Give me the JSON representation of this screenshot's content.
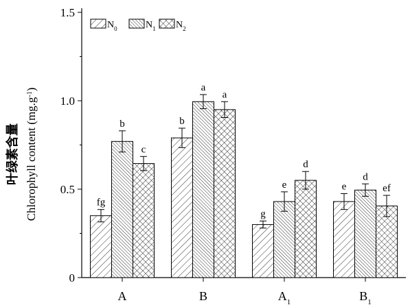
{
  "chart_data": {
    "type": "bar",
    "ylabel_cn": "叶绿素含量",
    "ylabel": "Chlorophyll content (mg.g",
    "ylabel_sup": "-1",
    "ylabel_tail": ")",
    "ylim": [
      0,
      1.5
    ],
    "yticks": [
      "0",
      "0.5",
      "1.0",
      "1.5"
    ],
    "ytick_values": [
      0,
      0.5,
      1.0,
      1.5
    ],
    "categories": [
      {
        "main": "A",
        "sub": ""
      },
      {
        "main": "B",
        "sub": ""
      },
      {
        "main": "A",
        "sub": "1"
      },
      {
        "main": "B",
        "sub": "1"
      }
    ],
    "legend_position": "top-left",
    "grid": false,
    "series": [
      {
        "name": "N",
        "sub": "0",
        "pattern": "diag-hatch",
        "values": [
          0.35,
          0.79,
          0.3,
          0.43
        ],
        "errors": [
          0.035,
          0.055,
          0.02,
          0.045
        ],
        "labels": [
          "fg",
          "b",
          "g",
          "e"
        ]
      },
      {
        "name": "N",
        "sub": "1",
        "pattern": "dense-diag-hatch",
        "values": [
          0.77,
          0.995,
          0.43,
          0.495
        ],
        "errors": [
          0.06,
          0.04,
          0.055,
          0.035
        ],
        "labels": [
          "b",
          "a",
          "e",
          "d"
        ]
      },
      {
        "name": "N",
        "sub": "2",
        "pattern": "cross-hatch",
        "values": [
          0.645,
          0.95,
          0.55,
          0.405
        ],
        "errors": [
          0.04,
          0.045,
          0.05,
          0.06
        ],
        "labels": [
          "c",
          "a",
          "d",
          "ef"
        ]
      }
    ]
  }
}
